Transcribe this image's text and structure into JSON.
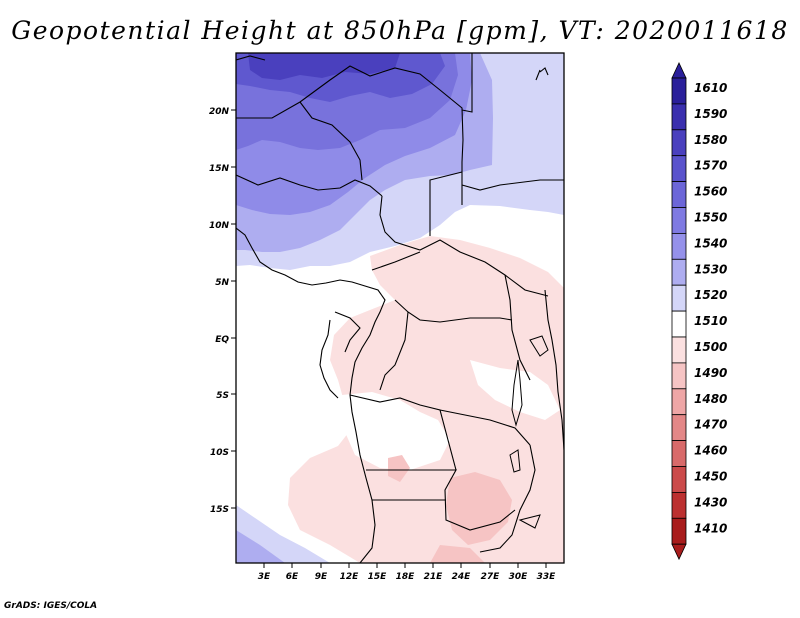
{
  "title": "Geopotential Height at 850hPa [gpm], VT: 2020011618",
  "footer": "GrADS: IGES/COLA",
  "map": {
    "lat_labels": [
      "20N",
      "15N",
      "10N",
      "5N",
      "EQ",
      "5S",
      "10S",
      "15S"
    ],
    "lon_labels": [
      "3E",
      "6E",
      "9E",
      "12E",
      "15E",
      "18E",
      "21E",
      "24E",
      "27E",
      "30E",
      "33E"
    ]
  },
  "colorbar": {
    "labels": [
      "1610",
      "1590",
      "1580",
      "1570",
      "1560",
      "1550",
      "1540",
      "1530",
      "1520",
      "1510",
      "1500",
      "1490",
      "1480",
      "1470",
      "1460",
      "1450",
      "1430",
      "1410"
    ],
    "colors": [
      "#2a1f9a",
      "#3a2fae",
      "#4a40be",
      "#5a53cc",
      "#6c66d8",
      "#7f7ae2",
      "#9591ea",
      "#aeadf0",
      "#d4d6f8",
      "#ffffff",
      "#fbe0e0",
      "#f6c4c4",
      "#eea6a6",
      "#e38787",
      "#d86a6a",
      "#cb4a4a",
      "#bc3030",
      "#a81c1c"
    ]
  }
}
